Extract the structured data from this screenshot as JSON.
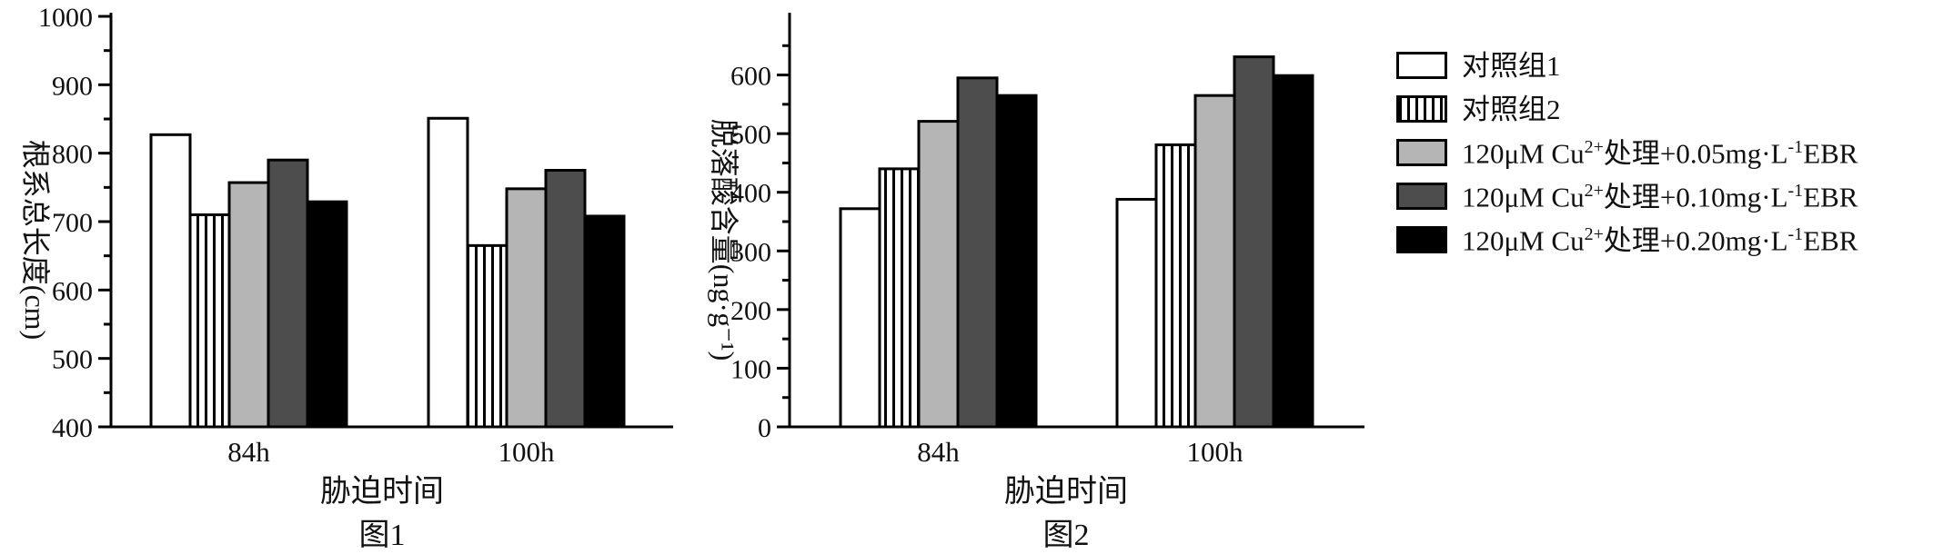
{
  "figures": [
    {
      "caption": "图1",
      "chart_data": {
        "type": "bar",
        "categories": [
          "84h",
          "100h"
        ],
        "ylabel": "根系总长度(cm)",
        "xlabel": "胁迫时间",
        "ylim": [
          400,
          1000
        ],
        "yticks": [
          400,
          500,
          600,
          700,
          800,
          900,
          1000
        ],
        "series": [
          {
            "name": "对照组1",
            "values": [
              827,
              851
            ]
          },
          {
            "name": "对照组2",
            "values": [
              710,
              665
            ]
          },
          {
            "name": "120μM Cu²⁺处理+0.05mg·L⁻¹EBR",
            "values": [
              757,
              748
            ]
          },
          {
            "name": "120μM Cu²⁺处理+0.10mg·L⁻¹EBR",
            "values": [
              790,
              775
            ]
          },
          {
            "name": "120μM Cu²⁺处理+0.20mg·L⁻¹EBR",
            "values": [
              729,
              708
            ]
          }
        ]
      }
    },
    {
      "caption": "图2",
      "chart_data": {
        "type": "bar",
        "categories": [
          "84h",
          "100h"
        ],
        "ylabel": "脱落酸含量(ng·g⁻¹)",
        "xlabel": "胁迫时间",
        "ylim": [
          0,
          700
        ],
        "yticks": [
          0,
          100,
          200,
          300,
          400,
          500,
          600
        ],
        "series": [
          {
            "name": "对照组1",
            "values": [
              372,
              388
            ]
          },
          {
            "name": "对照组2",
            "values": [
              440,
              481
            ]
          },
          {
            "name": "120μM Cu²⁺处理+0.05mg·L⁻¹EBR",
            "values": [
              521,
              565
            ]
          },
          {
            "name": "120μM Cu²⁺处理+0.10mg·L⁻¹EBR",
            "values": [
              595,
              631
            ]
          },
          {
            "name": "120μM Cu²⁺处理+0.20mg·L⁻¹EBR",
            "values": [
              565,
              599
            ]
          }
        ]
      }
    }
  ],
  "legend": [
    {
      "fill": "white",
      "label": "对照组1"
    },
    {
      "fill": "stripes",
      "label": "对照组2"
    },
    {
      "fill": "#b5b5b5",
      "label_main": "120μM Cu",
      "label_sup": "2+",
      "label_mid": "处理+0.05mg·L",
      "label_sup2": "-1",
      "label_end": "EBR"
    },
    {
      "fill": "#4d4d4d",
      "label_main": "120μM Cu",
      "label_sup": "2+",
      "label_mid": "处理+0.10mg·L",
      "label_sup2": "-1",
      "label_end": "EBR"
    },
    {
      "fill": "#000000",
      "label_main": "120μM Cu",
      "label_sup": "2+",
      "label_mid": "处理+0.20mg·L",
      "label_sup2": "-1",
      "label_end": "EBR"
    }
  ],
  "series_fills": [
    "white",
    "stripes",
    "#b5b5b5",
    "#4d4d4d",
    "#000000"
  ]
}
